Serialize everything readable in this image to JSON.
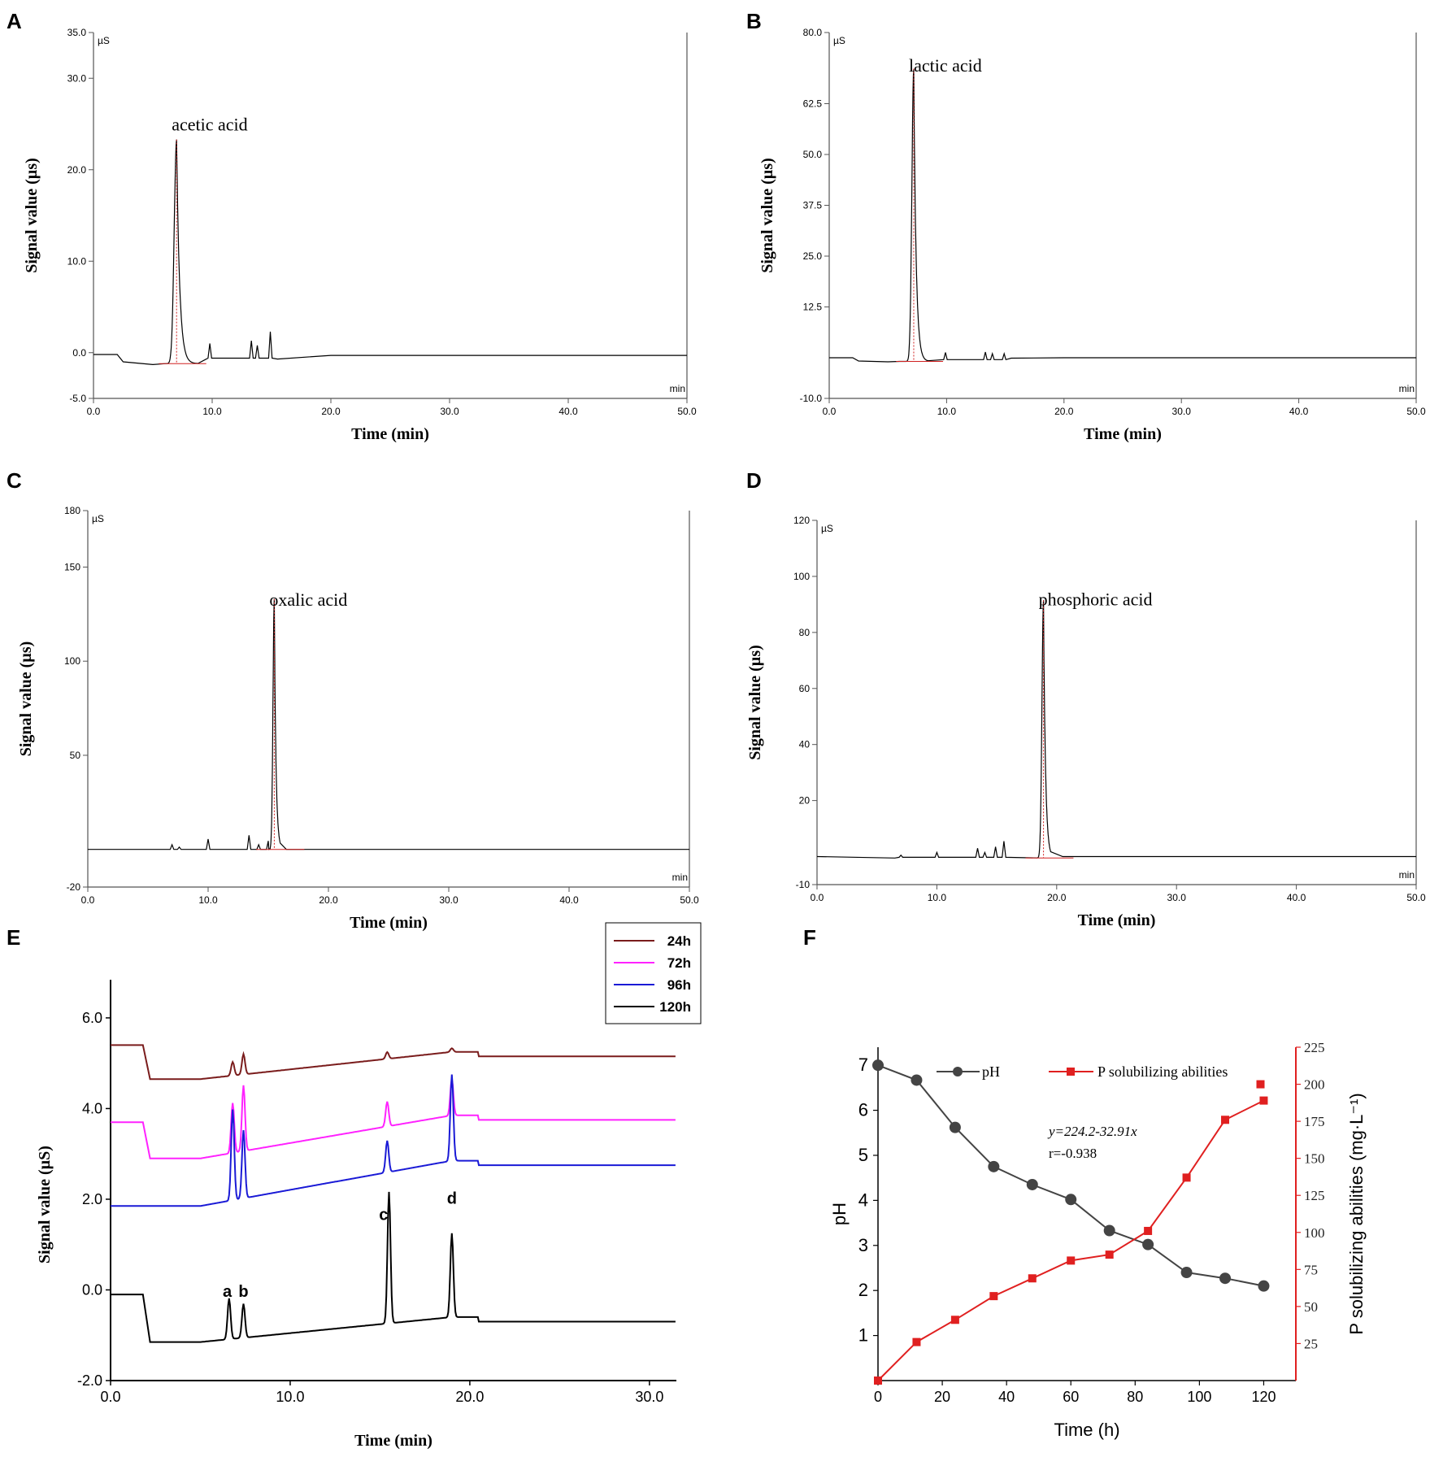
{
  "chart_data": [
    {
      "id": "A",
      "type": "line",
      "panel_label": "A",
      "ylabel": "Signal value (µs)",
      "xlabel": "Time (min)",
      "y_unit": "µS",
      "x_unit": "min",
      "xlim": [
        0,
        50
      ],
      "ylim": [
        -5,
        35
      ],
      "x_ticks": [
        0,
        10,
        20,
        30,
        40,
        50
      ],
      "x_tick_labels": [
        "0.0",
        "10.0",
        "20.0",
        "30.0",
        "40.0",
        "50.0"
      ],
      "y_ticks": [
        -5,
        0,
        10,
        20,
        30,
        35
      ],
      "y_tick_labels": [
        "-5.0",
        "0.0",
        "10.0",
        "20.0",
        "30.0",
        "35.0"
      ],
      "annotation": {
        "text": "acetic acid",
        "x": 7,
        "y": 25
      },
      "baseline": [
        [
          0,
          -0.2
        ],
        [
          2.0,
          -0.2
        ],
        [
          2.5,
          -1.0
        ],
        [
          5,
          -1.3
        ],
        [
          6,
          -1.2
        ]
      ],
      "peak": {
        "center": 7.0,
        "height": 24.5,
        "width": 0.28,
        "tail": 1.8
      },
      "small_peaks": [
        [
          9.8,
          1.0
        ],
        [
          13.3,
          1.3
        ],
        [
          13.8,
          0.8
        ],
        [
          14.9,
          2.3
        ]
      ],
      "tail": [
        [
          15.5,
          -0.7
        ],
        [
          20,
          -0.3
        ],
        [
          30,
          -0.3
        ],
        [
          50,
          -0.3
        ]
      ]
    },
    {
      "id": "B",
      "type": "line",
      "panel_label": "B",
      "ylabel": "Signal value (µs)",
      "xlabel": "Time (min)",
      "y_unit": "µS",
      "x_unit": "min",
      "xlim": [
        0,
        50
      ],
      "ylim": [
        -10,
        80
      ],
      "x_ticks": [
        0,
        10,
        20,
        30,
        40,
        50
      ],
      "x_tick_labels": [
        "0.0",
        "10.0",
        "20.0",
        "30.0",
        "40.0",
        "50.0"
      ],
      "y_ticks": [
        -10,
        12.5,
        25,
        37.5,
        50,
        62.5,
        80
      ],
      "y_tick_labels": [
        "-10.0",
        "12.5",
        "25.0",
        "37.5",
        "50.0",
        "62.5",
        "80.0"
      ],
      "annotation": {
        "text": "lactic acid",
        "x": 7.2,
        "y": 72
      },
      "baseline": [
        [
          0,
          0
        ],
        [
          2.0,
          0
        ],
        [
          2.5,
          -0.8
        ],
        [
          5,
          -1.0
        ],
        [
          6,
          -0.9
        ]
      ],
      "peak": {
        "center": 7.2,
        "height": 72,
        "width": 0.22,
        "tail": 1.2
      },
      "small_peaks": [
        [
          9.9,
          1.3
        ],
        [
          13.3,
          1.4
        ],
        [
          13.9,
          1.0
        ],
        [
          14.9,
          1.0
        ]
      ],
      "tail": [
        [
          15.5,
          -0.1
        ],
        [
          20,
          0
        ],
        [
          30,
          0
        ],
        [
          50,
          0
        ]
      ]
    },
    {
      "id": "C",
      "type": "line",
      "panel_label": "C",
      "ylabel": "Signal value (µs)",
      "xlabel": "Time (min)",
      "y_unit": "µS",
      "x_unit": "min",
      "xlim": [
        0,
        50
      ],
      "ylim": [
        -20,
        180
      ],
      "x_ticks": [
        0,
        10,
        20,
        30,
        40,
        50
      ],
      "x_tick_labels": [
        "0.0",
        "10.0",
        "20.0",
        "30.0",
        "40.0",
        "50.0"
      ],
      "y_ticks": [
        -20,
        50,
        100,
        150,
        180
      ],
      "y_tick_labels": [
        "-20",
        "50",
        "100",
        "150",
        "180"
      ],
      "annotation": {
        "text": "oxalic acid",
        "x": 15.5,
        "y": 133
      },
      "baseline": [
        [
          0,
          0
        ],
        [
          6.5,
          0
        ]
      ],
      "peak": {
        "center": 15.5,
        "height": 133,
        "width": 0.15,
        "tail": 0.5
      },
      "small_peaks": [
        [
          7.0,
          2.5
        ],
        [
          7.6,
          1.2
        ],
        [
          10.0,
          5.5
        ],
        [
          13.4,
          7.5
        ],
        [
          14.2,
          2.5
        ],
        [
          15.0,
          4.5
        ]
      ],
      "tail": [
        [
          16.5,
          0
        ],
        [
          50,
          0
        ]
      ]
    },
    {
      "id": "D",
      "type": "line",
      "panel_label": "D",
      "ylabel": "Signal value (µs)",
      "xlabel": "Time (min)",
      "y_unit": "µS",
      "x_unit": "min",
      "xlim": [
        0,
        50
      ],
      "ylim": [
        -10,
        120
      ],
      "x_ticks": [
        0,
        10,
        20,
        30,
        40,
        50
      ],
      "x_tick_labels": [
        "0.0",
        "10.0",
        "20.0",
        "30.0",
        "40.0",
        "50.0"
      ],
      "y_ticks": [
        -10,
        20,
        40,
        60,
        80,
        100,
        120
      ],
      "y_tick_labels": [
        "-10",
        "20",
        "40",
        "60",
        "80",
        "100",
        "120"
      ],
      "annotation": {
        "text": "phosphoric acid",
        "x": 18.9,
        "y": 92
      },
      "baseline": [
        [
          0,
          0
        ],
        [
          6.5,
          -0.5
        ]
      ],
      "peak": {
        "center": 18.9,
        "height": 92,
        "width": 0.18,
        "tail": 0.6
      },
      "small_peaks": [
        [
          7.0,
          0.5
        ],
        [
          10.0,
          1.5
        ],
        [
          13.4,
          3.0
        ],
        [
          14.0,
          1.5
        ],
        [
          14.9,
          3.5
        ],
        [
          15.6,
          5.5
        ]
      ],
      "tail": [
        [
          20.5,
          0
        ],
        [
          50,
          0
        ]
      ]
    },
    {
      "id": "E",
      "type": "line",
      "panel_label": "E",
      "ylabel": "Signal value (µS)",
      "xlabel": "Time (min)",
      "xlim": [
        0,
        31.5
      ],
      "ylim": [
        -2.0,
        7.2
      ],
      "x_ticks": [
        0,
        10,
        20,
        30
      ],
      "x_tick_labels": [
        "0.0",
        "10.0",
        "20.0",
        "30.0"
      ],
      "y_ticks": [
        -2,
        0,
        2,
        4,
        6
      ],
      "y_tick_labels": [
        "-2.0",
        "0.0",
        "2.0",
        "4.0",
        "6.0"
      ],
      "legend": [
        "24h",
        "72h",
        "96h",
        "120h"
      ],
      "peak_labels": [
        {
          "text": "a",
          "x": 6.5,
          "y": -0.15
        },
        {
          "text": "b",
          "x": 7.4,
          "y": -0.15
        },
        {
          "text": "c",
          "x": 15.2,
          "y": 1.9
        },
        {
          "text": "d",
          "x": 19.0,
          "y": 1.9
        }
      ],
      "series": [
        {
          "name": "24h",
          "color": "#7a1c1c",
          "offset": 5.4,
          "dip": 0.75,
          "rise": 0.6,
          "peaks": [
            [
              6.8,
              0.3
            ],
            [
              7.4,
              0.45
            ],
            [
              15.4,
              0.15
            ],
            [
              19.0,
              0.08
            ]
          ]
        },
        {
          "name": "72h",
          "color": "#ff22ff",
          "offset": 3.7,
          "dip": 0.8,
          "rise": 0.95,
          "peaks": [
            [
              6.8,
              1.1
            ],
            [
              7.4,
              1.45
            ],
            [
              15.4,
              0.55
            ],
            [
              19.0,
              0.8
            ]
          ]
        },
        {
          "name": "96h",
          "color": "#1a1ad6",
          "offset": 1.85,
          "dip": 0.0,
          "rise": 1.0,
          "peaks": [
            [
              6.8,
              2.0
            ],
            [
              7.4,
              1.5
            ],
            [
              15.4,
              0.7
            ],
            [
              19.0,
              1.9
            ]
          ]
        },
        {
          "name": "120h",
          "color": "#000000",
          "offset": -0.1,
          "dip": 1.05,
          "rise": 0.55,
          "peaks": [
            [
              6.6,
              0.9
            ],
            [
              7.4,
              0.75
            ],
            [
              15.5,
              2.9
            ],
            [
              19.0,
              1.85
            ]
          ]
        }
      ]
    },
    {
      "id": "F",
      "type": "line",
      "panel_label": "F",
      "xlabel": "Time (h)",
      "ylabel": "pH",
      "y2label": "P solubilizing abilities (mg·L⁻¹)",
      "xlim": [
        0,
        130
      ],
      "ylim": [
        0,
        7.4
      ],
      "y2lim": [
        0,
        225
      ],
      "x_ticks": [
        0,
        20,
        40,
        60,
        80,
        100,
        120
      ],
      "y_ticks": [
        1,
        2,
        3,
        4,
        5,
        6,
        7
      ],
      "y2_ticks": [
        25,
        50,
        75,
        100,
        125,
        150,
        175,
        200,
        225
      ],
      "x": [
        0,
        12,
        24,
        36,
        48,
        60,
        72,
        84,
        96,
        108,
        120
      ],
      "series": [
        {
          "name": "pH",
          "color": "#444444",
          "marker": "circle",
          "values": [
            7.0,
            6.67,
            5.62,
            4.75,
            4.35,
            4.02,
            3.33,
            3.02,
            2.4,
            2.27,
            2.1
          ]
        },
        {
          "name": "P solubilizing abilities",
          "color": "#e02020",
          "marker": "square",
          "axis": "y2",
          "values": [
            0,
            26,
            41,
            57,
            69,
            81,
            85,
            101,
            137,
            176,
            189
          ]
        }
      ],
      "extra_marker": {
        "x": 119,
        "y2": 200
      },
      "equation": "y=224.2-32.91x",
      "equation_display": "y=224.2-32.91x",
      "correlation": "r=-0.938"
    }
  ],
  "labels": {
    "legend_F_ph": "pH",
    "legend_F_p": "P solubilizing abilities",
    "eq": "y=224.2-32.91x",
    "r": "r=-0.938"
  }
}
